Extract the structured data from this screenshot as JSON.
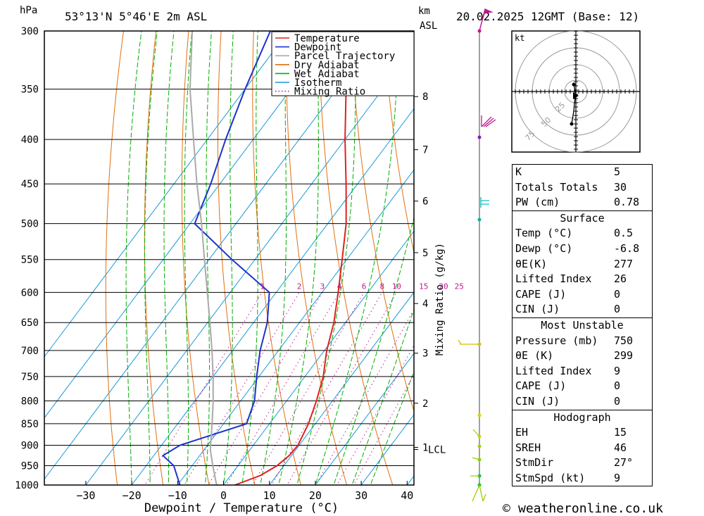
{
  "header": {
    "hpa_unit": "hPa",
    "location": "53°13'N 5°46'E 2m ASL",
    "km_unit": "km",
    "asl_unit": "ASL",
    "datetime": "20.02.2025 12GMT (Base: 12)"
  },
  "legend": [
    {
      "label": "Temperature",
      "color": "#e02020",
      "style": "solid"
    },
    {
      "label": "Dewpoint",
      "color": "#1a33cc",
      "style": "solid"
    },
    {
      "label": "Parcel Trajectory",
      "color": "#aaaaaa",
      "style": "solid"
    },
    {
      "label": "Dry Adiabat",
      "color": "#e07010",
      "style": "solid"
    },
    {
      "label": "Wet Adiabat",
      "color": "#00b000",
      "style": "solid"
    },
    {
      "label": "Isotherm",
      "color": "#1a9ad8",
      "style": "solid"
    },
    {
      "label": "Mixing Ratio",
      "color": "#c01890",
      "style": "dotted"
    }
  ],
  "chart_data": {
    "type": "line",
    "title": "53°13'N 5°46'E 2m ASL",
    "xlabel": "Dewpoint / Temperature (°C)",
    "ylabel": "hPa",
    "x_ticks": [
      -30,
      -20,
      -10,
      0,
      10,
      20,
      30,
      40
    ],
    "p_ticks": [
      300,
      350,
      400,
      450,
      500,
      550,
      600,
      650,
      700,
      750,
      800,
      850,
      900,
      950,
      1000
    ],
    "km_ticks": [
      {
        "label": "8",
        "p": 357
      },
      {
        "label": "7",
        "p": 411
      },
      {
        "label": "6",
        "p": 471
      },
      {
        "label": "5",
        "p": 540
      },
      {
        "label": "4",
        "p": 618
      },
      {
        "label": "3",
        "p": 705
      },
      {
        "label": "2",
        "p": 805
      },
      {
        "label": "1",
        "p": 905
      }
    ],
    "lcl_label": "LCL",
    "lcl_p": 910,
    "mixing_ratio_label": "Mixing Ratio (g/kg)",
    "mixing_ratio_values": [
      "1",
      "2",
      "3",
      "4",
      "6",
      "8",
      "10",
      "15",
      "20",
      "25"
    ],
    "isotherm_temps": [
      -60,
      -50,
      -40,
      -30,
      -20,
      -10,
      0,
      10,
      20,
      30,
      40
    ],
    "dry_adiabat_thetas": [
      250,
      260,
      270,
      280,
      290,
      300,
      310,
      320,
      330,
      340,
      350,
      360,
      370,
      380,
      390,
      400,
      410,
      420,
      430,
      440,
      450,
      460
    ],
    "wet_adiabat_temps": [
      -20,
      -16,
      -12,
      -8,
      -4,
      0,
      4,
      8,
      12,
      16,
      20,
      24,
      28,
      32
    ],
    "series": [
      {
        "name": "Temperature",
        "color": "#e02020",
        "points": [
          [
            1030,
            0.5
          ],
          [
            1000,
            2.5
          ],
          [
            975,
            6.5
          ],
          [
            950,
            8.5
          ],
          [
            925,
            9.5
          ],
          [
            900,
            9.7
          ],
          [
            850,
            8.5
          ],
          [
            800,
            6.5
          ],
          [
            750,
            4.0
          ],
          [
            700,
            0.5
          ],
          [
            650,
            -2.5
          ],
          [
            600,
            -6.5
          ],
          [
            550,
            -11.0
          ],
          [
            500,
            -16.0
          ],
          [
            450,
            -22.5
          ],
          [
            400,
            -30.0
          ],
          [
            350,
            -38.0
          ],
          [
            300,
            -46.0
          ]
        ]
      },
      {
        "name": "Dewpoint",
        "color": "#1a33cc",
        "points": [
          [
            1030,
            -6.8
          ],
          [
            1000,
            -9.5
          ],
          [
            950,
            -14.0
          ],
          [
            925,
            -18.0
          ],
          [
            900,
            -16.0
          ],
          [
            850,
            -5.0
          ],
          [
            800,
            -7.0
          ],
          [
            750,
            -10.5
          ],
          [
            700,
            -14.0
          ],
          [
            650,
            -17.0
          ],
          [
            600,
            -21.5
          ],
          [
            550,
            -35.0
          ],
          [
            500,
            -49.0
          ],
          [
            450,
            -52.0
          ],
          [
            400,
            -56.0
          ],
          [
            350,
            -60.0
          ],
          [
            300,
            -64.0
          ]
        ]
      },
      {
        "name": "Parcel Trajectory",
        "color": "#aaaaaa",
        "points": [
          [
            1030,
            0.5
          ],
          [
            1000,
            -1.5
          ],
          [
            950,
            -5.5
          ],
          [
            910,
            -8.7
          ],
          [
            850,
            -12.5
          ],
          [
            800,
            -16.0
          ],
          [
            750,
            -20.0
          ],
          [
            700,
            -24.5
          ],
          [
            650,
            -29.5
          ],
          [
            600,
            -35.0
          ],
          [
            550,
            -41.0
          ],
          [
            500,
            -47.5
          ],
          [
            450,
            -55.0
          ],
          [
            400,
            -63.0
          ],
          [
            350,
            -72.0
          ],
          [
            300,
            -81.0
          ]
        ]
      }
    ]
  },
  "hodograph": {
    "unit": "kt",
    "ring_labels": [
      "25",
      "50",
      "75"
    ]
  },
  "indices": {
    "basic": [
      {
        "label": "K",
        "value": "5"
      },
      {
        "label": "Totals Totals",
        "value": "30"
      },
      {
        "label": "PW (cm)",
        "value": "0.78"
      }
    ],
    "surface": {
      "title": "Surface",
      "rows": [
        {
          "label": "Temp (°C)",
          "value": "0.5"
        },
        {
          "label": "Dewp (°C)",
          "value": "-6.8"
        },
        {
          "label": "θE(K)",
          "value": "277"
        },
        {
          "label": "Lifted Index",
          "value": "26"
        },
        {
          "label": "CAPE (J)",
          "value": "0"
        },
        {
          "label": "CIN (J)",
          "value": "0"
        }
      ]
    },
    "most_unstable": {
      "title": "Most Unstable",
      "rows": [
        {
          "label": "Pressure (mb)",
          "value": "750"
        },
        {
          "label": "θE (K)",
          "value": "299"
        },
        {
          "label": "Lifted Index",
          "value": "9"
        },
        {
          "label": "CAPE (J)",
          "value": "0"
        },
        {
          "label": "CIN (J)",
          "value": "0"
        }
      ]
    },
    "hodograph": {
      "title": "Hodograph",
      "rows": [
        {
          "label": "EH",
          "value": "15"
        },
        {
          "label": "SREH",
          "value": "46"
        },
        {
          "label": "StmDir",
          "value": "27°"
        },
        {
          "label": "StmSpd (kt)",
          "value": "9"
        }
      ]
    }
  },
  "footer": {
    "copyright_symbol": "©",
    "site": "weatheronline.co.uk"
  }
}
